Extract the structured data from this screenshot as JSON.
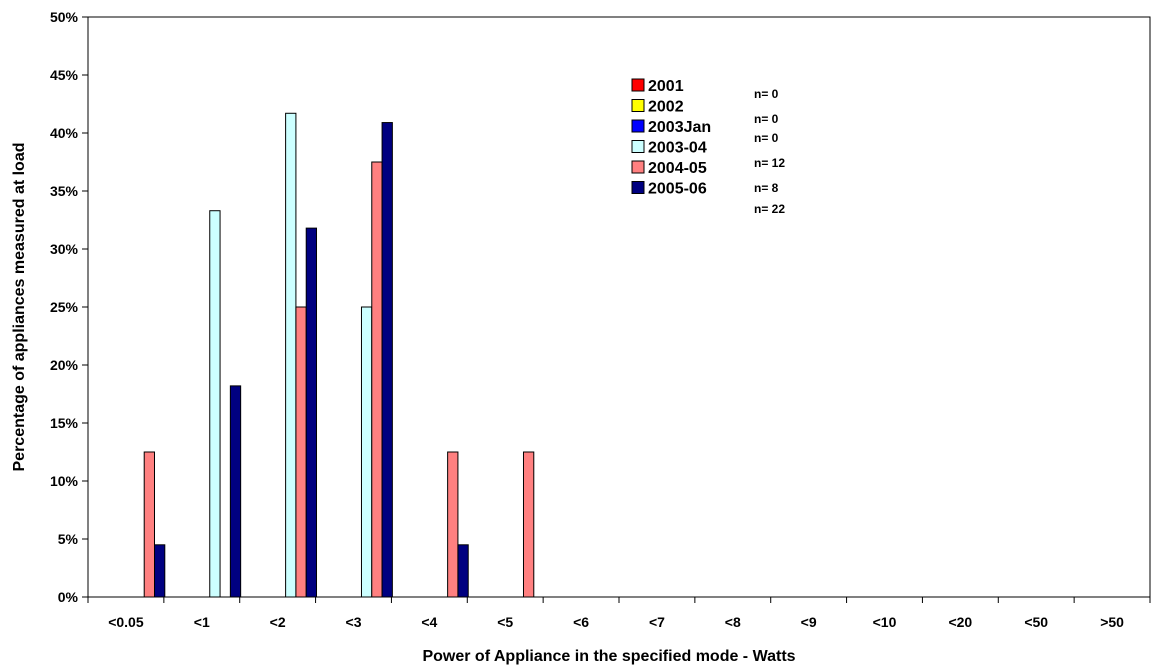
{
  "chart_data": {
    "type": "bar",
    "xlabel": "Power of Appliance in the specified mode - Watts",
    "ylabel": "Percentage of appliances measured at load",
    "ylim": [
      0,
      50
    ],
    "ytick_step": 5,
    "yticks_format": "percent",
    "grid": false,
    "legend_position": "top-center",
    "categories": [
      "<0.05",
      "<1",
      "<2",
      "<3",
      "<4",
      "<5",
      "<6",
      "<7",
      "<8",
      "<9",
      "<10",
      "<20",
      "<50",
      ">50"
    ],
    "series": [
      {
        "name": "2001",
        "color": "#ff0000",
        "n_label": "n= 0",
        "values": [
          0,
          0,
          0,
          0,
          0,
          0,
          0,
          0,
          0,
          0,
          0,
          0,
          0,
          0
        ]
      },
      {
        "name": "2002",
        "color": "#ffff00",
        "n_label": "n= 0",
        "values": [
          0,
          0,
          0,
          0,
          0,
          0,
          0,
          0,
          0,
          0,
          0,
          0,
          0,
          0
        ]
      },
      {
        "name": "2003Jan",
        "color": "#0000ff",
        "n_label": "n= 0",
        "values": [
          0,
          0,
          0,
          0,
          0,
          0,
          0,
          0,
          0,
          0,
          0,
          0,
          0,
          0
        ]
      },
      {
        "name": "2003-04",
        "color": "#ccffff",
        "n_label": "n= 12",
        "values": [
          0,
          33.3,
          41.7,
          25.0,
          0,
          0,
          0,
          0,
          0,
          0,
          0,
          0,
          0,
          0
        ]
      },
      {
        "name": "2004-05",
        "color": "#ff8080",
        "n_label": "n= 8",
        "values": [
          12.5,
          0,
          25.0,
          37.5,
          12.5,
          12.5,
          0,
          0,
          0,
          0,
          0,
          0,
          0,
          0
        ]
      },
      {
        "name": "2005-06",
        "color": "#000080",
        "n_label": "n= 22",
        "values": [
          4.5,
          18.2,
          31.8,
          40.9,
          4.5,
          0,
          0,
          0,
          0,
          0,
          0,
          0,
          0,
          0
        ]
      }
    ]
  }
}
